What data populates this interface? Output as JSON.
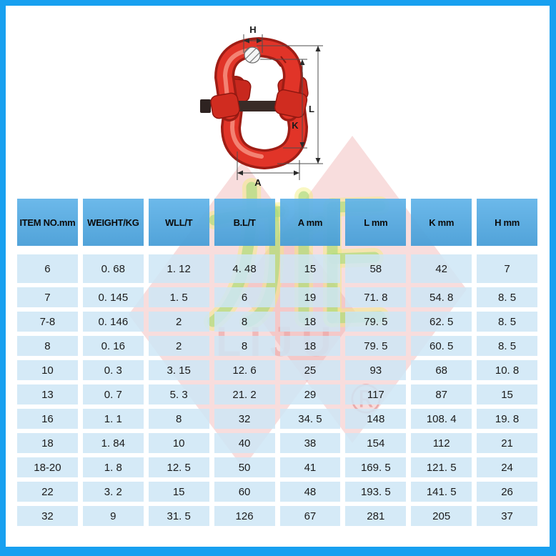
{
  "page": {
    "background": "#ffffff",
    "frame_color": "#18a0f0"
  },
  "product_drawing": {
    "description": "red hammerlock connecting link technical drawing with dimension lines",
    "dimension_labels": {
      "h": "H",
      "l": "L",
      "k": "K",
      "a": "A"
    }
  },
  "watermark": {
    "chinese": "力炬",
    "latin": "LIJU",
    "registered_mark": "®",
    "diamond_color": "#eeaaaa",
    "green_color": "#a8dc86",
    "yellow_color": "#f2ee78"
  },
  "table": {
    "headers": [
      "ITEM NO.mm",
      "WEIGHT/KG",
      "WLL/T",
      "B.L/T",
      "A mm",
      "L mm",
      "K mm",
      "H mm"
    ],
    "rows": [
      [
        "6",
        "0. 68",
        "1. 12",
        "4. 48",
        "15",
        "58",
        "42",
        "7"
      ],
      [
        "7",
        "0. 145",
        "1. 5",
        "6",
        "19",
        "71. 8",
        "54. 8",
        "8. 5"
      ],
      [
        "7-8",
        "0. 146",
        "2",
        "8",
        "18",
        "79. 5",
        "62. 5",
        "8. 5"
      ],
      [
        "8",
        "0. 16",
        "2",
        "8",
        "18",
        "79. 5",
        "60. 5",
        "8. 5"
      ],
      [
        "10",
        "0. 3",
        "3. 15",
        "12. 6",
        "25",
        "93",
        "68",
        "10. 8"
      ],
      [
        "13",
        "0. 7",
        "5. 3",
        "21. 2",
        "29",
        "117",
        "87",
        "15"
      ],
      [
        "16",
        "1. 1",
        "8",
        "32",
        "34. 5",
        "148",
        "108. 4",
        "19. 8"
      ],
      [
        "18",
        "1. 84",
        "10",
        "40",
        "38",
        "154",
        "112",
        "21"
      ],
      [
        "18-20",
        "1. 8",
        "12. 5",
        "50",
        "41",
        "169. 5",
        "121. 5",
        "24"
      ],
      [
        "22",
        "3. 2",
        "15",
        "60",
        "48",
        "193. 5",
        "141. 5",
        "26"
      ],
      [
        "32",
        "9",
        "31. 5",
        "126",
        "67",
        "281",
        "205",
        "37"
      ]
    ]
  }
}
